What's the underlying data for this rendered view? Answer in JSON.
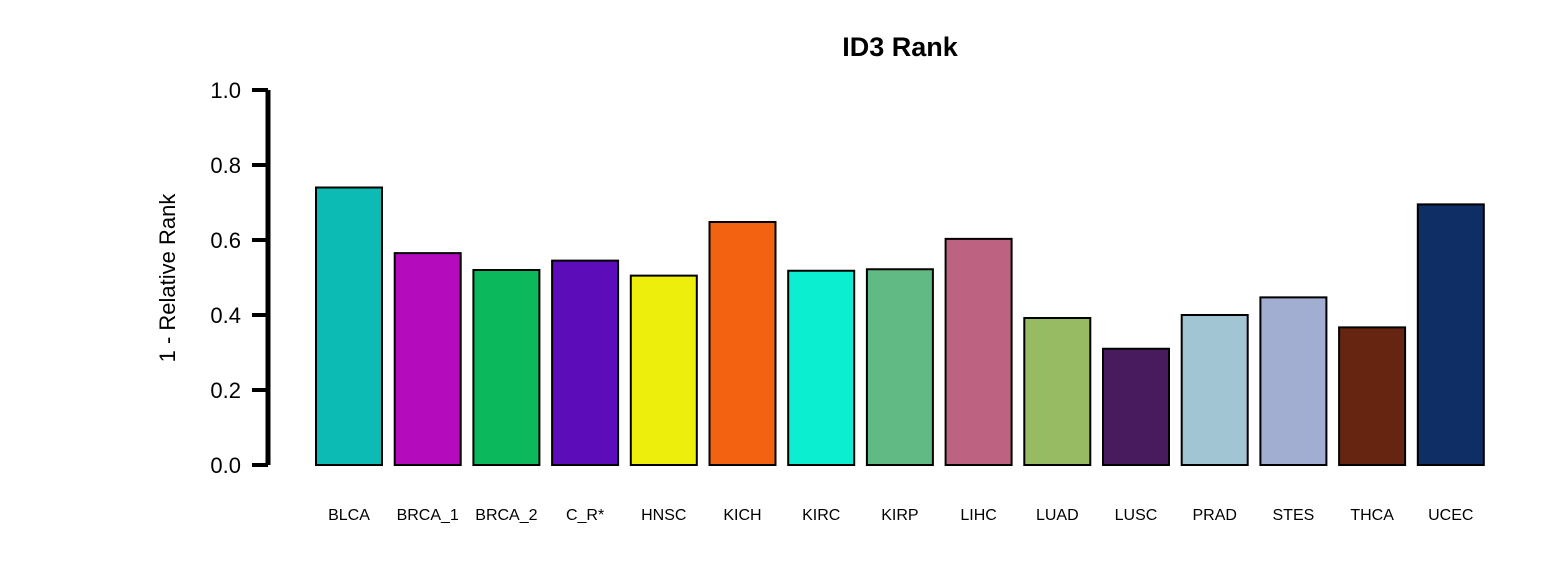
{
  "chart_data": {
    "type": "bar",
    "title": "ID3 Rank",
    "xlabel": "",
    "ylabel": "1 - Relative Rank",
    "ylim": [
      0,
      1.0
    ],
    "yticks": [
      "0.0",
      "0.2",
      "0.4",
      "0.6",
      "0.8",
      "1.0"
    ],
    "yticks_values": [
      0.0,
      0.2,
      0.4,
      0.6,
      0.8,
      1.0
    ],
    "grid": false,
    "legend": "none",
    "categories": [
      "BLCA",
      "BRCA_1",
      "BRCA_2",
      "C_R*",
      "HNSC",
      "KICH",
      "KIRC",
      "KIRP",
      "LIHC",
      "LUAD",
      "LUSC",
      "PRAD",
      "STES",
      "THCA",
      "UCEC"
    ],
    "values": [
      0.74,
      0.565,
      0.52,
      0.545,
      0.505,
      0.648,
      0.518,
      0.522,
      0.603,
      0.392,
      0.31,
      0.4,
      0.447,
      0.367,
      0.695
    ],
    "colors": [
      "#0CBCB4",
      "#B40CBC",
      "#0CB85C",
      "#5C0CB8",
      "#EEEE0C",
      "#F26210",
      "#0CEED0",
      "#61BA83",
      "#BE6282",
      "#97BB63",
      "#481B5E",
      "#A1C5D2",
      "#A1AED2",
      "#662510",
      "#0F2E66"
    ]
  }
}
